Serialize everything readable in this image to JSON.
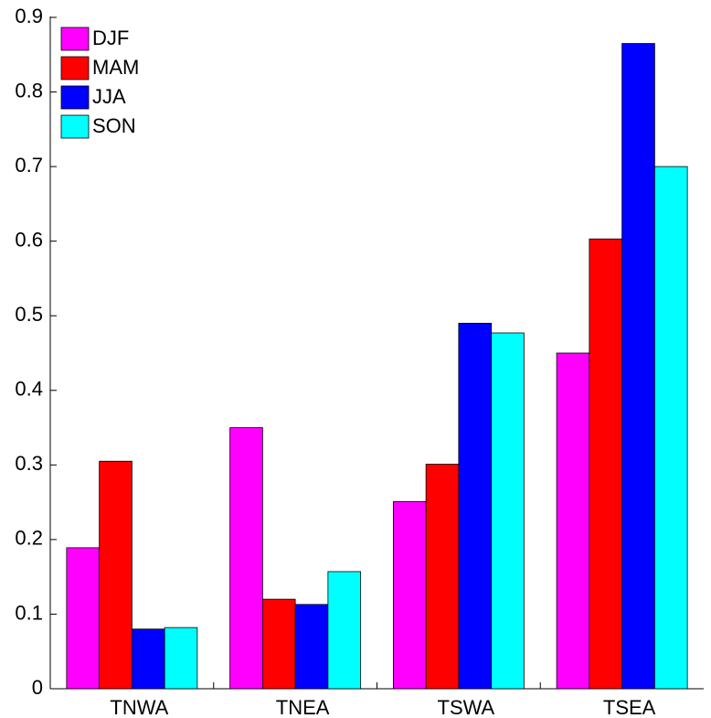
{
  "chart_data": {
    "type": "bar",
    "categories": [
      "TNWA",
      "TNEA",
      "TSWA",
      "TSEA"
    ],
    "series": [
      {
        "name": "DJF",
        "color": "#ff00ff",
        "values": [
          0.189,
          0.35,
          0.251,
          0.45
        ]
      },
      {
        "name": "MAM",
        "color": "#ff0000",
        "values": [
          0.305,
          0.12,
          0.301,
          0.603
        ]
      },
      {
        "name": "JJA",
        "color": "#0000ff",
        "values": [
          0.08,
          0.113,
          0.49,
          0.865
        ]
      },
      {
        "name": "SON",
        "color": "#00ffff",
        "values": [
          0.082,
          0.157,
          0.477,
          0.7
        ]
      }
    ],
    "ylim": [
      0,
      0.9
    ],
    "yticks": [
      0,
      0.1,
      0.2,
      0.3,
      0.4,
      0.5,
      0.6,
      0.7,
      0.8,
      0.9
    ],
    "grid": false,
    "legend": "upper-left"
  }
}
